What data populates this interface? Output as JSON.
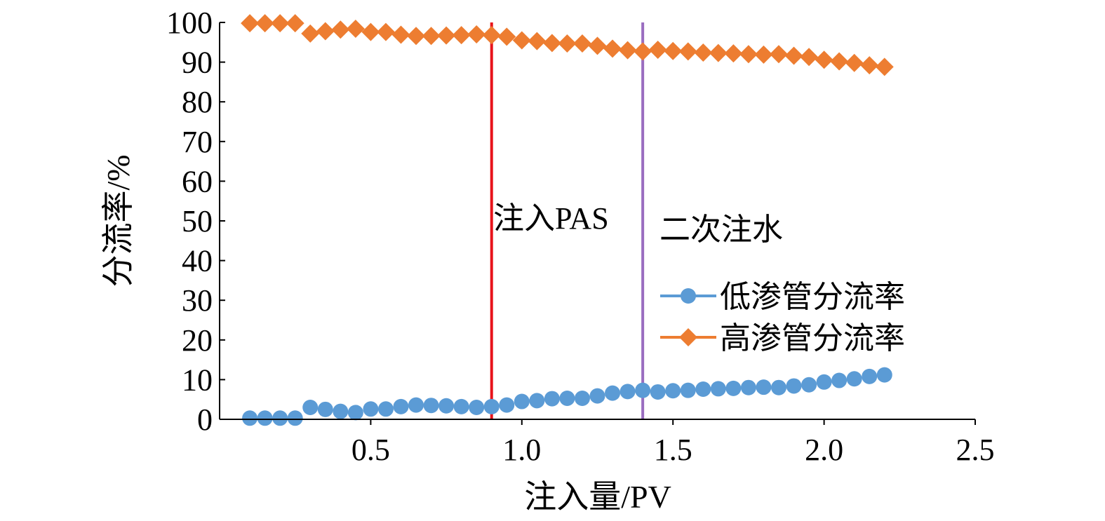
{
  "chart_data": {
    "type": "scatter",
    "xlabel": "注入量/PV",
    "ylabel": "分流率/%",
    "xlim": [
      0,
      2.5
    ],
    "ylim": [
      0,
      100
    ],
    "xticks": [
      "0.5",
      "1.0",
      "1.5",
      "2.0",
      "2.5"
    ],
    "xtick_values": [
      0.5,
      1.0,
      1.5,
      2.0,
      2.5
    ],
    "yticks": [
      "0",
      "10",
      "20",
      "30",
      "40",
      "50",
      "60",
      "70",
      "80",
      "90",
      "100"
    ],
    "ytick_values": [
      0,
      10,
      20,
      30,
      40,
      50,
      60,
      70,
      80,
      90,
      100
    ],
    "grid": false,
    "legend_position": "right-middle",
    "x": [
      0.1,
      0.15,
      0.2,
      0.25,
      0.3,
      0.35,
      0.4,
      0.45,
      0.5,
      0.55,
      0.6,
      0.65,
      0.7,
      0.75,
      0.8,
      0.85,
      0.9,
      0.95,
      1.0,
      1.05,
      1.1,
      1.15,
      1.2,
      1.25,
      1.3,
      1.35,
      1.4,
      1.45,
      1.5,
      1.55,
      1.6,
      1.65,
      1.7,
      1.75,
      1.8,
      1.85,
      1.9,
      1.95,
      2.0,
      2.05,
      2.1,
      2.15,
      2.2
    ],
    "series": [
      {
        "name": "低渗管分流率",
        "color": "#5B9BD5",
        "marker": "circle",
        "values": [
          0.3,
          0.3,
          0.3,
          0.3,
          3.0,
          2.5,
          2.0,
          1.7,
          2.6,
          2.6,
          3.2,
          3.6,
          3.5,
          3.4,
          3.2,
          3.0,
          3.2,
          3.6,
          4.5,
          4.7,
          5.2,
          5.3,
          5.3,
          5.9,
          6.6,
          7.0,
          7.3,
          6.9,
          7.2,
          7.3,
          7.6,
          7.7,
          7.8,
          8.0,
          8.1,
          8.0,
          8.4,
          8.7,
          9.4,
          9.8,
          10.2,
          10.8,
          11.2
        ]
      },
      {
        "name": "高渗管分流率",
        "color": "#ED7D31",
        "marker": "diamond",
        "values": [
          99.8,
          99.8,
          99.8,
          99.8,
          97.2,
          97.8,
          98.2,
          98.4,
          97.6,
          97.6,
          96.9,
          96.6,
          96.6,
          96.7,
          96.8,
          97.0,
          96.8,
          96.4,
          95.5,
          95.3,
          94.8,
          94.7,
          94.7,
          94.1,
          93.4,
          93.0,
          92.7,
          93.1,
          92.8,
          92.7,
          92.4,
          92.3,
          92.2,
          92.0,
          91.9,
          92.0,
          91.6,
          91.3,
          90.6,
          90.2,
          89.8,
          89.2,
          88.8
        ]
      }
    ],
    "annotations": [
      {
        "text": "注入PAS",
        "x": 0.9,
        "color": "#E8141B"
      },
      {
        "text": "二次注水",
        "x": 1.4,
        "color": "#9A6DC0"
      }
    ]
  }
}
